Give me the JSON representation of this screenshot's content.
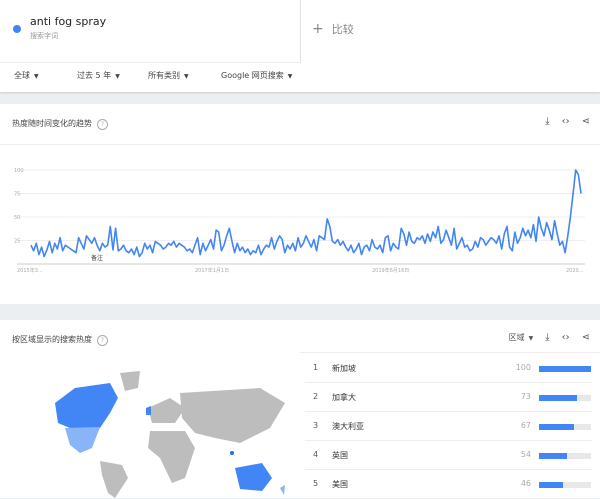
{
  "term": {
    "name": "anti fog spray",
    "subtitle": "搜索字词",
    "color": "#4285f4"
  },
  "compare": {
    "icon": "plus-icon",
    "label": "比较"
  },
  "filters": [
    "全球",
    "过去 5 年",
    "所有类别",
    "Google 网页搜索"
  ],
  "trend": {
    "title": "热度随时间变化的趋势",
    "icons": [
      "download-icon",
      "embed-icon",
      "share-icon"
    ],
    "annotation": "备注"
  },
  "chart_data": {
    "type": "line",
    "ylim": [
      0,
      100
    ],
    "yticks": [
      "25",
      "50",
      "75",
      "100"
    ],
    "xticks": [
      "2015年3...",
      "2017年1月1日",
      "2019年6月16日",
      "2020..."
    ],
    "grid": true,
    "color": "#4285f4",
    "values": [
      20,
      14,
      22,
      10,
      18,
      8,
      15,
      24,
      12,
      22,
      16,
      28,
      14,
      20,
      18,
      16,
      14,
      12,
      28,
      22,
      16,
      30,
      26,
      22,
      28,
      20,
      14,
      22,
      18,
      20,
      40,
      15,
      38,
      14,
      16,
      20,
      14,
      12,
      16,
      10,
      18,
      8,
      12,
      22,
      16,
      20,
      12,
      24,
      22,
      20,
      16,
      18,
      22,
      20,
      24,
      18,
      22,
      20,
      18,
      14,
      16,
      12,
      20,
      28,
      10,
      22,
      14,
      20,
      26,
      16,
      36,
      34,
      14,
      20,
      30,
      38,
      24,
      12,
      22,
      14,
      18,
      12,
      16,
      10,
      14,
      12,
      20,
      10,
      16,
      20,
      18,
      28,
      16,
      24,
      30,
      26,
      12,
      20,
      16,
      22,
      14,
      28,
      18,
      22,
      30,
      24,
      18,
      26,
      14,
      30,
      28,
      26,
      48,
      40,
      24,
      22,
      26,
      20,
      24,
      18,
      14,
      20,
      12,
      16,
      22,
      10,
      18,
      20,
      14,
      26,
      18,
      16,
      20,
      12,
      28,
      30,
      14,
      22,
      18,
      16,
      38,
      32,
      20,
      34,
      24,
      22,
      28,
      26,
      30,
      22,
      32,
      24,
      34,
      28,
      40,
      22,
      26,
      36,
      28,
      20,
      38,
      16,
      22,
      28,
      18,
      20,
      14,
      16,
      24,
      18,
      28,
      26,
      20,
      24,
      28,
      26,
      22,
      30,
      16,
      32,
      40,
      18,
      14,
      34,
      22,
      28,
      38,
      30,
      36,
      28,
      42,
      24,
      50,
      38,
      30,
      44,
      36,
      26,
      46,
      32,
      20,
      24,
      12,
      30,
      50,
      75,
      100,
      95,
      75
    ],
    "annotation_label": "备注"
  },
  "region": {
    "title": "按区域显示的搜索热度",
    "dropdown": "区域",
    "icons": [
      "download-icon",
      "embed-icon",
      "share-icon"
    ],
    "rows": [
      {
        "rank": "1",
        "name": "新加坡",
        "value": "100",
        "pct": 100
      },
      {
        "rank": "2",
        "name": "加拿大",
        "value": "73",
        "pct": 73
      },
      {
        "rank": "3",
        "name": "澳大利亚",
        "value": "67",
        "pct": 67
      },
      {
        "rank": "4",
        "name": "英国",
        "value": "54",
        "pct": 54
      },
      {
        "rank": "5",
        "name": "美国",
        "value": "46",
        "pct": 46
      }
    ]
  }
}
